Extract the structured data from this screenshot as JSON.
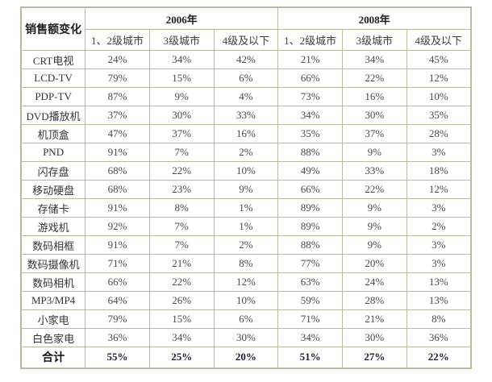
{
  "table": {
    "corner_label": "销售额变化",
    "year_groups": [
      {
        "label": "2006年"
      },
      {
        "label": "2008年"
      }
    ],
    "sub_columns": [
      "1、2级城市",
      "3级城市",
      "4级及以下"
    ],
    "rows": [
      {
        "label": "CRT电视",
        "values": [
          "24%",
          "34%",
          "42%",
          "21%",
          "34%",
          "45%"
        ]
      },
      {
        "label": "LCD-TV",
        "values": [
          "79%",
          "15%",
          "6%",
          "66%",
          "22%",
          "12%"
        ]
      },
      {
        "label": "PDP-TV",
        "values": [
          "87%",
          "9%",
          "4%",
          "73%",
          "16%",
          "10%"
        ]
      },
      {
        "label": "DVD播放机",
        "values": [
          "37%",
          "30%",
          "33%",
          "34%",
          "30%",
          "35%"
        ]
      },
      {
        "label": "机顶盒",
        "values": [
          "47%",
          "37%",
          "16%",
          "35%",
          "37%",
          "28%"
        ]
      },
      {
        "label": "PND",
        "values": [
          "91%",
          "7%",
          "2%",
          "88%",
          "9%",
          "3%"
        ]
      },
      {
        "label": "闪存盘",
        "values": [
          "68%",
          "22%",
          "10%",
          "49%",
          "33%",
          "18%"
        ]
      },
      {
        "label": "移动硬盘",
        "values": [
          "68%",
          "23%",
          "9%",
          "66%",
          "22%",
          "12%"
        ]
      },
      {
        "label": "存储卡",
        "values": [
          "91%",
          "8%",
          "1%",
          "89%",
          "9%",
          "3%"
        ]
      },
      {
        "label": "游戏机",
        "values": [
          "92%",
          "7%",
          "1%",
          "89%",
          "9%",
          "2%"
        ]
      },
      {
        "label": "数码相框",
        "values": [
          "91%",
          "7%",
          "2%",
          "88%",
          "9%",
          "3%"
        ]
      },
      {
        "label": "数码摄像机",
        "values": [
          "71%",
          "21%",
          "8%",
          "77%",
          "20%",
          "3%"
        ]
      },
      {
        "label": "数码相机",
        "values": [
          "66%",
          "22%",
          "12%",
          "63%",
          "24%",
          "13%"
        ]
      },
      {
        "label": "MP3/MP4",
        "values": [
          "64%",
          "26%",
          "10%",
          "59%",
          "28%",
          "13%"
        ]
      },
      {
        "label": "小家电",
        "values": [
          "79%",
          "15%",
          "6%",
          "71%",
          "21%",
          "8%"
        ]
      },
      {
        "label": "白色家电",
        "values": [
          "36%",
          "34%",
          "30%",
          "34%",
          "30%",
          "36%"
        ]
      }
    ],
    "total_row": {
      "label": "合计",
      "values": [
        "55%",
        "25%",
        "20%",
        "51%",
        "27%",
        "22%"
      ]
    }
  },
  "colors": {
    "border": "#bdb99c",
    "text": "#3d3d3d",
    "background": "#ffffff"
  }
}
